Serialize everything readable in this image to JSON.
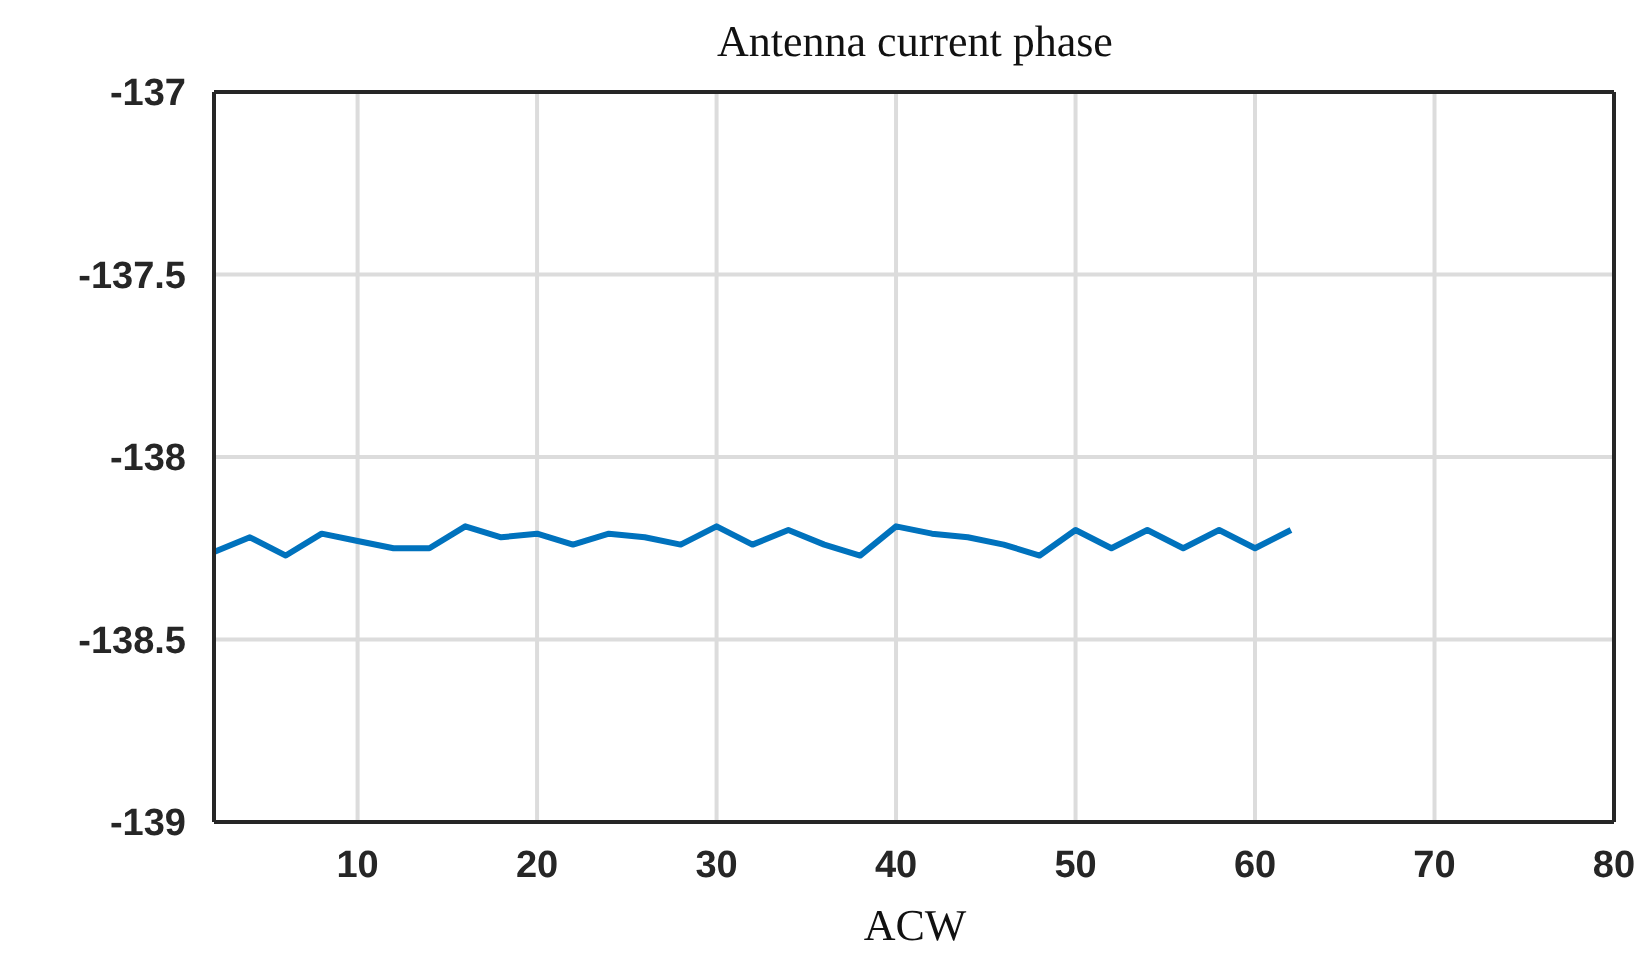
{
  "chart_data": {
    "type": "line",
    "title": "Antenna current phase",
    "xlabel": "ACW",
    "x": [
      2,
      4,
      6,
      8,
      10,
      12,
      14,
      16,
      18,
      20,
      22,
      24,
      26,
      28,
      30,
      32,
      34,
      36,
      38,
      40,
      42,
      44,
      46,
      48,
      50,
      52,
      54,
      56,
      58,
      60,
      62
    ],
    "series": [
      {
        "color": "#0072bd",
        "values": [
          -138.26,
          -138.22,
          -138.27,
          -138.21,
          -138.23,
          -138.25,
          -138.25,
          -138.19,
          -138.22,
          -138.21,
          -138.24,
          -138.21,
          -138.22,
          -138.24,
          -138.19,
          -138.24,
          -138.2,
          -138.24,
          -138.27,
          -138.19,
          -138.21,
          -138.22,
          -138.24,
          -138.27,
          -138.2,
          -138.25,
          -138.2,
          -138.25,
          -138.2,
          -138.25,
          -138.2
        ]
      }
    ],
    "xlim": [
      2,
      80
    ],
    "xticks": [
      10,
      20,
      30,
      40,
      50,
      60,
      70,
      80
    ],
    "ylim": [
      -139,
      -137
    ],
    "yticks": [
      -139,
      -138.5,
      -138,
      -137.5,
      -137
    ],
    "grid": true,
    "marker": "none",
    "line_style": "solid"
  }
}
